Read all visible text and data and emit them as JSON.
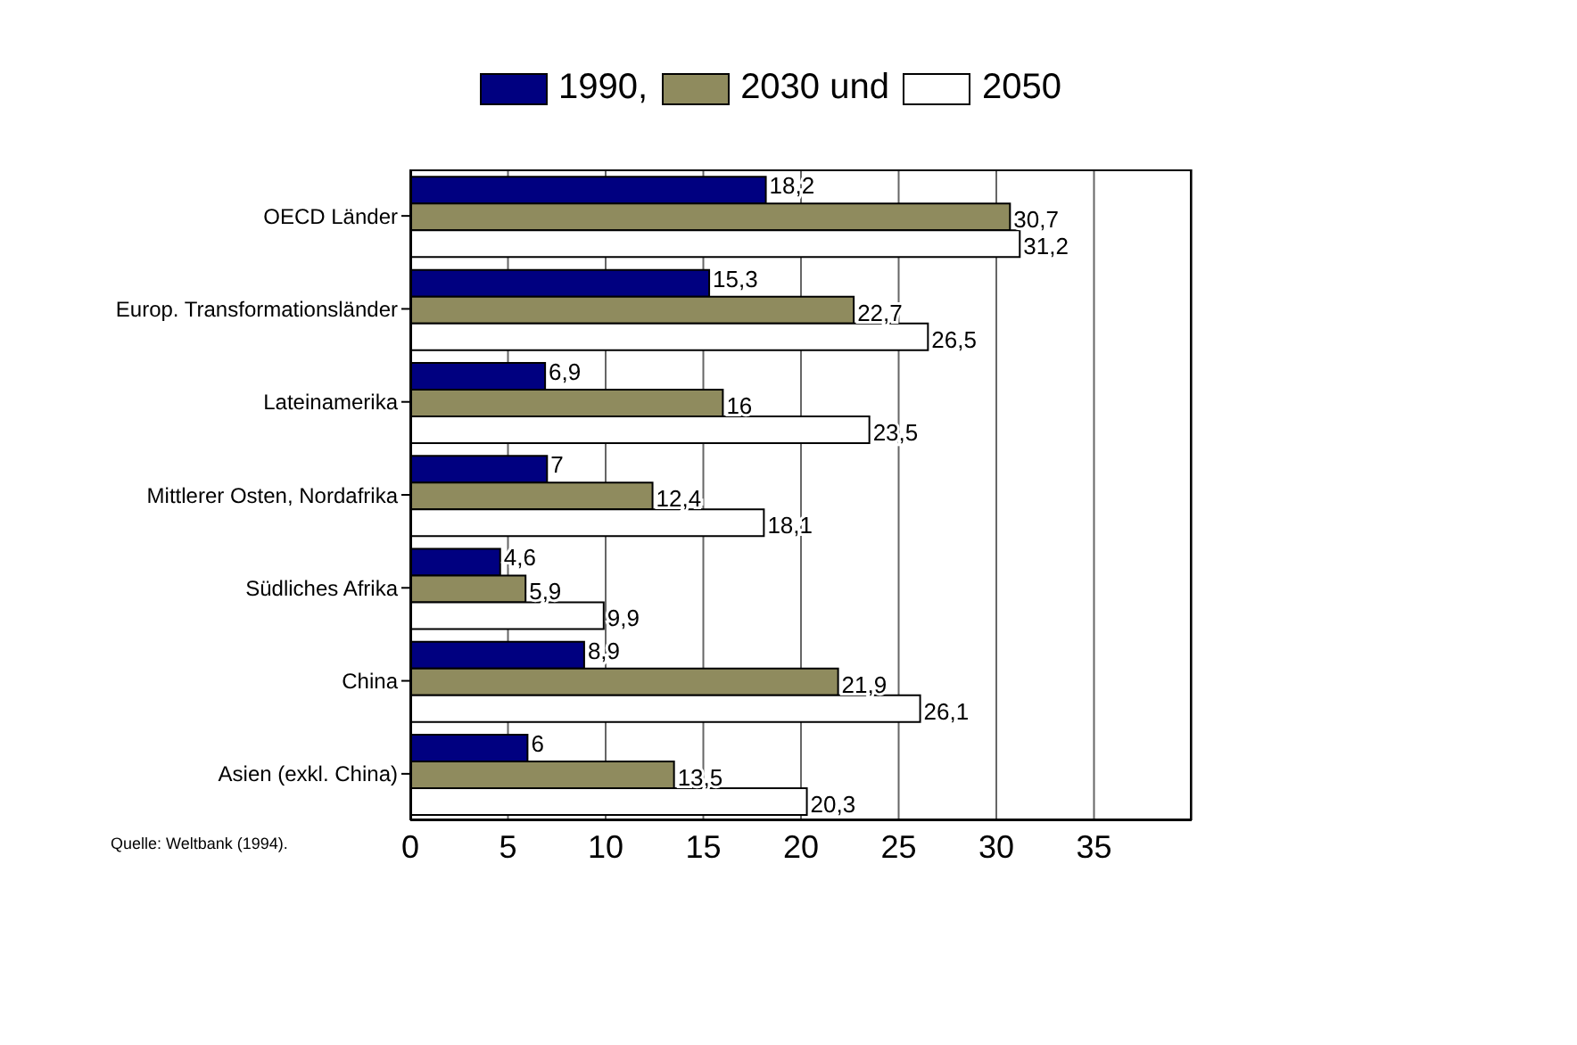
{
  "chart_data": {
    "type": "bar",
    "orientation": "horizontal",
    "categories": [
      "OECD Länder",
      "Europ. Transformationsländer",
      "Lateinamerika",
      "Mittlerer Osten, Nordafrika",
      "Südliches Afrika",
      "China",
      "Asien (exkl. China)"
    ],
    "series": [
      {
        "name": "1990,",
        "color": "#000080",
        "values": [
          18.2,
          15.3,
          6.9,
          7,
          4.6,
          8.9,
          6
        ],
        "value_labels": [
          "18,2",
          "15,3",
          "6,9",
          "7",
          "4,6",
          "8,9",
          "6"
        ]
      },
      {
        "name": "2030 und",
        "color": "#8f8b5e",
        "values": [
          30.7,
          22.7,
          16,
          12.4,
          5.9,
          21.9,
          13.5
        ],
        "value_labels": [
          "30,7",
          "22,7",
          "16",
          "12,4",
          "5,9",
          "21,9",
          "13,5"
        ]
      },
      {
        "name": "2050",
        "color": "#ffffff",
        "values": [
          31.2,
          26.5,
          23.5,
          18.1,
          9.9,
          26.1,
          20.3
        ],
        "value_labels": [
          "31,2",
          "26,5",
          "23,5",
          "18,1",
          "9,9",
          "26,1",
          "20,3"
        ]
      }
    ],
    "xlim": [
      0,
      40
    ],
    "xticks": [
      0,
      5,
      10,
      15,
      20,
      25,
      30,
      35
    ],
    "grid": "x",
    "legend": "top",
    "annotations": [
      "Quelle: Weltbank (1994)."
    ]
  }
}
